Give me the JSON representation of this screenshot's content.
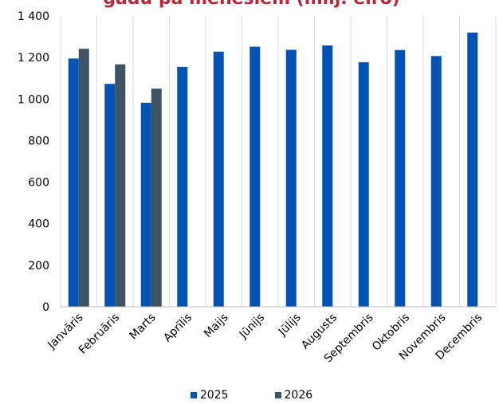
{
  "chart_data": {
    "type": "bar",
    "title": "gadu pa mēnešiem (milj. eiro)",
    "categories": [
      "Janvāris",
      "Februāris",
      "Marts",
      "Aprīlis",
      "Maijs",
      "Jūnijs",
      "Jūlijs",
      "Augusts",
      "Septembris",
      "Oktobris",
      "Novembris",
      "Decembris"
    ],
    "series": [
      {
        "name": "2025",
        "color": "#0052b4",
        "values": [
          1195,
          1073,
          982,
          1155,
          1228,
          1252,
          1237,
          1258,
          1177,
          1236,
          1207,
          1320
        ]
      },
      {
        "name": "2026",
        "color": "#3f5366",
        "values": [
          1242,
          1167,
          1050,
          null,
          null,
          null,
          null,
          null,
          null,
          null,
          null,
          null
        ]
      }
    ],
    "ylim": [
      0,
      1400
    ],
    "yticks": [
      0,
      200,
      400,
      600,
      800,
      1000,
      1200,
      1400
    ],
    "ytick_labels": [
      "0",
      "200",
      "400",
      "600",
      "800",
      "1 000",
      "1 200",
      "1 400"
    ],
    "grid": "vertical",
    "legend_position": "bottom",
    "xlabel": "",
    "ylabel": ""
  }
}
